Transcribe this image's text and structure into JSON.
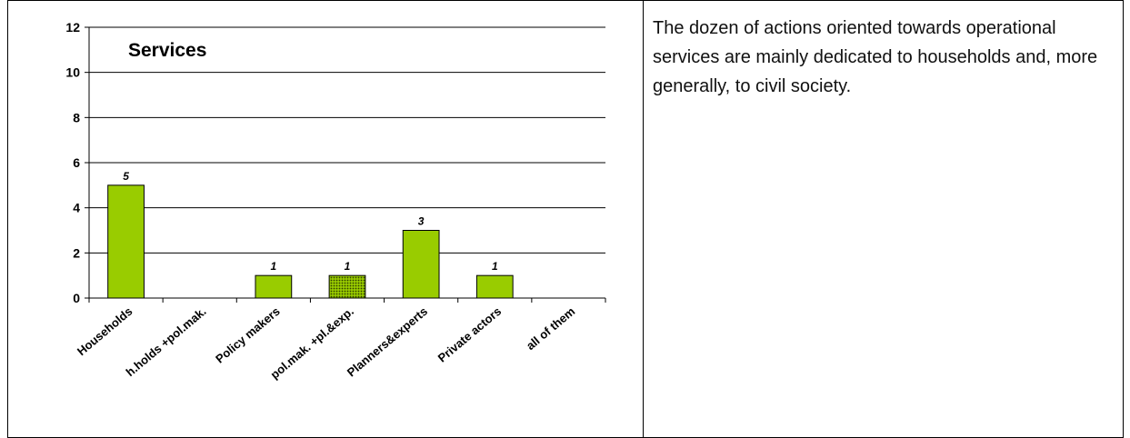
{
  "description": "The dozen of actions oriented towards operational services are mainly dedicated to households and, more generally, to civil society.",
  "chart_data": {
    "type": "bar",
    "title": "Services",
    "categories": [
      "Households",
      "h.holds +pol.mak.",
      "Policy makers",
      "pol.mak. +pl.&exp.",
      "Planners&experts",
      "Private actors",
      "all of them"
    ],
    "values": [
      5,
      0,
      1,
      1,
      3,
      1,
      0
    ],
    "value_labels": [
      "5",
      "",
      "1",
      "1",
      "3",
      "1",
      ""
    ],
    "ylim": [
      0,
      12
    ],
    "yticks": [
      0,
      2,
      4,
      6,
      8,
      10,
      12
    ],
    "xlabel": "",
    "ylabel": "",
    "grid": true,
    "legend": "none",
    "colors": {
      "bar": "#99cc00",
      "bar_stroke": "#000000",
      "hatched_bar_fill": "#99cc00",
      "hatched_bar_dots": "#2f3f00",
      "grid": "#000000"
    },
    "hatched_categories": [
      "pol.mak. +pl.&exp."
    ]
  }
}
